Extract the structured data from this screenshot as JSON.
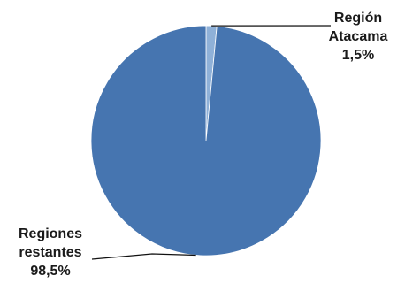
{
  "chart_data": {
    "type": "pie",
    "title": "",
    "slices": [
      {
        "label_lines": [
          "Región",
          "Atacama"
        ],
        "label": "Región Atacama",
        "value": 1.5,
        "value_text": "1,5%",
        "color": "#8fb1d8"
      },
      {
        "label_lines": [
          "Regiones",
          "restantes"
        ],
        "label": "Regiones restantes",
        "value": 98.5,
        "value_text": "98,5%",
        "color": "#4675b0"
      }
    ],
    "legend": "none",
    "leader_line_color": "#111111",
    "slice_border_color": "#ffffff"
  }
}
